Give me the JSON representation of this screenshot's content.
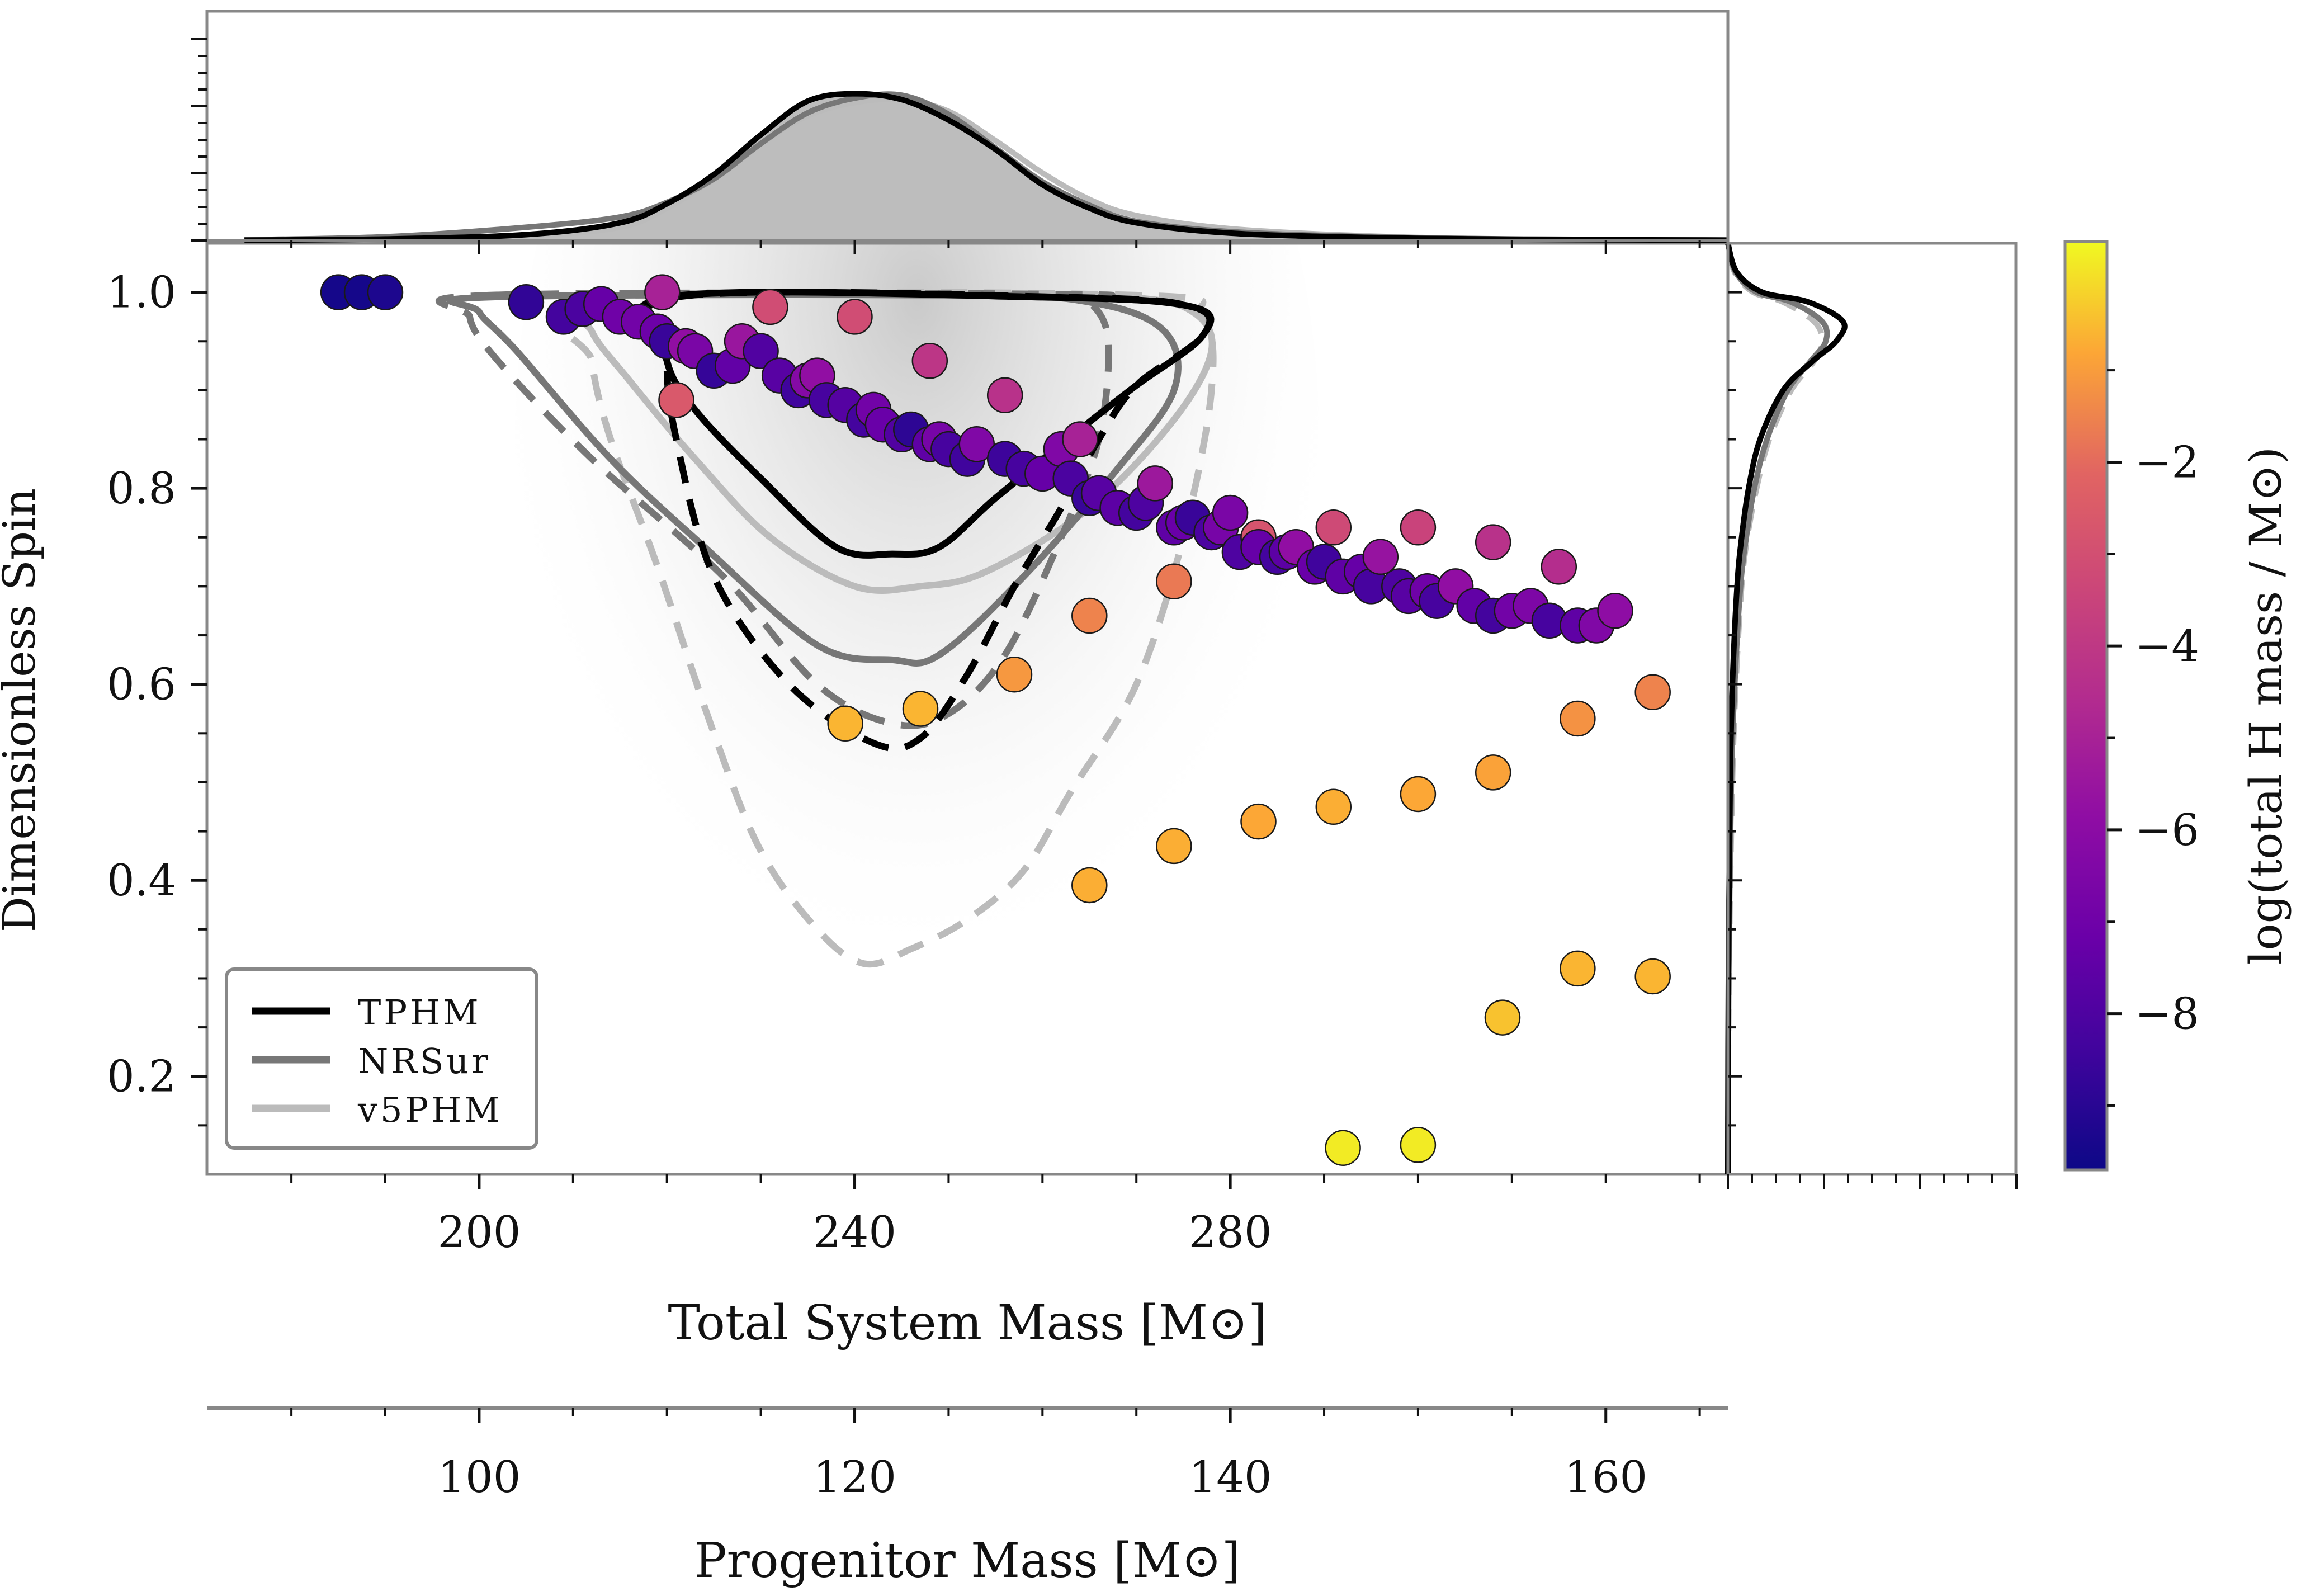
{
  "chart_data": {
    "type": "scatter",
    "xlabel": "Total System Mass [M⊙]",
    "ylabel": "Dimensionless Spin",
    "secondary_xlabel": "Progenitor Mass [M⊙]",
    "colorbar_label": "log(total H mass / M⊙)",
    "xlim": [
      171,
      333
    ],
    "ylim": [
      0.1,
      1.05
    ],
    "secondary_xlim": [
      85.5,
      166.5
    ],
    "colorbar_range": [
      -9.7,
      0.4
    ],
    "x_ticks": [
      200,
      240,
      280
    ],
    "y_ticks": [
      0.2,
      0.4,
      0.6,
      0.8,
      1.0
    ],
    "secondary_x_ticks": [
      100,
      120,
      140,
      160
    ],
    "colorbar_ticks": [
      -2,
      -4,
      -6,
      -8
    ],
    "x_tick_labels": [
      "200",
      "240",
      "280"
    ],
    "y_tick_labels": [
      "0.2",
      "0.4",
      "0.6",
      "0.8",
      "1.0"
    ],
    "secondary_x_tick_labels": [
      "100",
      "120",
      "140",
      "160"
    ],
    "colorbar_tick_labels": [
      "−2",
      "−4",
      "−6",
      "−8"
    ],
    "legend": {
      "placement": "lower-left",
      "entries": [
        {
          "label": "TPHM",
          "color": "#000000"
        },
        {
          "label": "NRSur",
          "color": "#777777"
        },
        {
          "label": "v5PHM",
          "color": "#bbbbbb"
        }
      ]
    },
    "series": [
      {
        "name": "TPHM",
        "color": "#000000",
        "inner": [
          [
            220,
            0.995
          ],
          [
            260,
            0.995
          ],
          [
            276,
            0.985
          ],
          [
            277,
            0.955
          ],
          [
            270,
            0.905
          ],
          [
            264,
            0.86
          ],
          [
            255,
            0.79
          ],
          [
            249,
            0.74
          ],
          [
            244,
            0.733
          ],
          [
            238,
            0.74
          ],
          [
            230,
            0.81
          ],
          [
            223,
            0.88
          ],
          [
            220,
            0.93
          ]
        ],
        "outer": [
          [
            221,
            0.995
          ],
          [
            262,
            0.995
          ],
          [
            276,
            0.985
          ],
          [
            277,
            0.955
          ],
          [
            270,
            0.905
          ],
          [
            266,
            0.85
          ],
          [
            262,
            0.78
          ],
          [
            257,
            0.7
          ],
          [
            252,
            0.61
          ],
          [
            247,
            0.545
          ],
          [
            242,
            0.54
          ],
          [
            233,
            0.6
          ],
          [
            225,
            0.71
          ],
          [
            221,
            0.85
          ],
          [
            220,
            0.93
          ]
        ]
      },
      {
        "name": "NRSur",
        "color": "#777777",
        "inner": [
          [
            201,
            0.995
          ],
          [
            250,
            0.997
          ],
          [
            265,
            0.99
          ],
          [
            273,
            0.96
          ],
          [
            274,
            0.9
          ],
          [
            268,
            0.82
          ],
          [
            258,
            0.71
          ],
          [
            249,
            0.63
          ],
          [
            244,
            0.625
          ],
          [
            236,
            0.64
          ],
          [
            224,
            0.74
          ],
          [
            214,
            0.83
          ],
          [
            204,
            0.94
          ],
          [
            200,
            0.98
          ]
        ],
        "outer": [
          [
            201,
            0.997
          ],
          [
            262,
            0.998
          ],
          [
            265,
            0.99
          ],
          [
            267,
            0.95
          ],
          [
            266,
            0.85
          ],
          [
            262,
            0.75
          ],
          [
            256,
            0.63
          ],
          [
            250,
            0.57
          ],
          [
            244,
            0.56
          ],
          [
            236,
            0.6
          ],
          [
            226,
            0.71
          ],
          [
            212,
            0.83
          ],
          [
            202,
            0.93
          ],
          [
            199,
            0.975
          ]
        ]
      },
      {
        "name": "v5PHM",
        "color": "#bbbbbb",
        "inner": [
          [
            212,
            0.995
          ],
          [
            250,
            0.998
          ],
          [
            269,
            0.995
          ],
          [
            276,
            0.98
          ],
          [
            278,
            0.94
          ],
          [
            274,
            0.87
          ],
          [
            265,
            0.78
          ],
          [
            254,
            0.715
          ],
          [
            247,
            0.7
          ],
          [
            240,
            0.7
          ],
          [
            231,
            0.75
          ],
          [
            223,
            0.83
          ],
          [
            216,
            0.91
          ],
          [
            212,
            0.96
          ]
        ],
        "outer": [
          [
            212,
            0.993
          ],
          [
            270,
            0.997
          ],
          [
            277,
            0.975
          ],
          [
            278,
            0.9
          ],
          [
            275,
            0.75
          ],
          [
            270,
            0.6
          ],
          [
            263,
            0.49
          ],
          [
            258,
            0.41
          ],
          [
            252,
            0.36
          ],
          [
            246,
            0.33
          ],
          [
            241,
            0.315
          ],
          [
            236,
            0.35
          ],
          [
            230,
            0.43
          ],
          [
            225,
            0.55
          ],
          [
            219,
            0.72
          ],
          [
            214,
            0.85
          ],
          [
            212,
            0.93
          ]
        ]
      }
    ],
    "marginal_x": {
      "samples": [
        175,
        190,
        205,
        215,
        220,
        225,
        230,
        235,
        240,
        245,
        250,
        255,
        260,
        265,
        270,
        280,
        295,
        310,
        333
      ],
      "TPHM": [
        0.002,
        0.01,
        0.04,
        0.12,
        0.25,
        0.45,
        0.72,
        0.95,
        1.0,
        0.96,
        0.82,
        0.62,
        0.38,
        0.22,
        0.12,
        0.05,
        0.02,
        0.008,
        0.002
      ],
      "NRSur": [
        0.005,
        0.025,
        0.09,
        0.16,
        0.26,
        0.42,
        0.66,
        0.87,
        0.97,
        0.99,
        0.86,
        0.63,
        0.4,
        0.24,
        0.13,
        0.06,
        0.025,
        0.01,
        0.003
      ],
      "v5PHM": [
        0.002,
        0.008,
        0.03,
        0.09,
        0.22,
        0.42,
        0.66,
        0.85,
        0.94,
        0.96,
        0.88,
        0.68,
        0.46,
        0.28,
        0.17,
        0.08,
        0.03,
        0.01,
        0.003
      ]
    },
    "marginal_y": {
      "samples": [
        0.1,
        0.3,
        0.5,
        0.6,
        0.7,
        0.75,
        0.8,
        0.85,
        0.9,
        0.93,
        0.95,
        0.97,
        0.99,
        1.0,
        1.02,
        1.05
      ],
      "TPHM": [
        0.0,
        0.005,
        0.02,
        0.04,
        0.08,
        0.12,
        0.18,
        0.28,
        0.48,
        0.74,
        0.94,
        1.0,
        0.7,
        0.3,
        0.08,
        0.0
      ],
      "NRSur": [
        0.0,
        0.008,
        0.03,
        0.06,
        0.11,
        0.16,
        0.23,
        0.34,
        0.52,
        0.72,
        0.85,
        0.82,
        0.55,
        0.25,
        0.07,
        0.0
      ],
      "v5PHM": [
        0.0,
        0.01,
        0.04,
        0.07,
        0.12,
        0.17,
        0.25,
        0.36,
        0.55,
        0.75,
        0.82,
        0.75,
        0.48,
        0.22,
        0.06,
        0.0
      ]
    },
    "points": [
      [
        185,
        1.0,
        -9.5
      ],
      [
        187.5,
        1.0,
        -9.5
      ],
      [
        190,
        1.0,
        -9.3
      ],
      [
        205,
        0.99,
        -8.8
      ],
      [
        209,
        0.975,
        -8.3
      ],
      [
        211,
        0.983,
        -8.1
      ],
      [
        213,
        0.988,
        -7.3
      ],
      [
        215,
        0.975,
        -7.0
      ],
      [
        217,
        0.97,
        -6.9
      ],
      [
        219,
        0.96,
        -7.1
      ],
      [
        219.5,
        1.0,
        -5.0
      ],
      [
        220,
        0.95,
        -8.6
      ],
      [
        221,
        0.89,
        -2.6
      ],
      [
        222,
        0.945,
        -5.8
      ],
      [
        223,
        0.94,
        -6.6
      ],
      [
        225,
        0.92,
        -8.7
      ],
      [
        227,
        0.925,
        -7.4
      ],
      [
        228,
        0.95,
        -5.5
      ],
      [
        230,
        0.94,
        -7.9
      ],
      [
        231,
        0.985,
        -3.1
      ],
      [
        232,
        0.915,
        -7.7
      ],
      [
        234,
        0.9,
        -8.4
      ],
      [
        235,
        0.91,
        -6.2
      ],
      [
        236,
        0.915,
        -5.8
      ],
      [
        237,
        0.89,
        -8.2
      ],
      [
        239,
        0.885,
        -7.8
      ],
      [
        240,
        0.975,
        -3.1
      ],
      [
        241,
        0.87,
        -8.3
      ],
      [
        242,
        0.88,
        -6.9
      ],
      [
        243,
        0.865,
        -7.2
      ],
      [
        245,
        0.855,
        -7.9
      ],
      [
        246,
        0.86,
        -8.9
      ],
      [
        248,
        0.845,
        -7.5
      ],
      [
        248,
        0.93,
        -4.1
      ],
      [
        249,
        0.85,
        -6.7
      ],
      [
        250,
        0.84,
        -8.2
      ],
      [
        252,
        0.83,
        -8.4
      ],
      [
        253,
        0.845,
        -6.4
      ],
      [
        256,
        0.895,
        -4.3
      ],
      [
        256,
        0.83,
        -8.5
      ],
      [
        258,
        0.82,
        -8.2
      ],
      [
        260,
        0.815,
        -7.3
      ],
      [
        262,
        0.84,
        -6.4
      ],
      [
        263,
        0.81,
        -8.1
      ],
      [
        264,
        0.85,
        -5.0
      ],
      [
        265,
        0.79,
        -8.6
      ],
      [
        266,
        0.795,
        -7.7
      ],
      [
        268,
        0.78,
        -7.6
      ],
      [
        270,
        0.775,
        -8.3
      ],
      [
        271,
        0.785,
        -8.0
      ],
      [
        272,
        0.805,
        -5.4
      ],
      [
        274,
        0.76,
        -7.5
      ],
      [
        275,
        0.765,
        -7.2
      ],
      [
        276,
        0.77,
        -8.6
      ],
      [
        278,
        0.755,
        -8.1
      ],
      [
        279,
        0.76,
        -6.7
      ],
      [
        280,
        0.775,
        -6.6
      ],
      [
        281,
        0.735,
        -8.0
      ],
      [
        283,
        0.75,
        -2.8
      ],
      [
        283,
        0.74,
        -7.3
      ],
      [
        285,
        0.73,
        -8.3
      ],
      [
        286,
        0.735,
        -7.6
      ],
      [
        287,
        0.74,
        -5.8
      ],
      [
        289,
        0.72,
        -7.2
      ],
      [
        290,
        0.725,
        -8.4
      ],
      [
        291,
        0.76,
        -3.2
      ],
      [
        292,
        0.71,
        -7.5
      ],
      [
        294,
        0.715,
        -7.3
      ],
      [
        295,
        0.7,
        -8.2
      ],
      [
        296,
        0.73,
        -5.6
      ],
      [
        298,
        0.7,
        -8.0
      ],
      [
        299,
        0.69,
        -7.7
      ],
      [
        300,
        0.76,
        -3.5
      ],
      [
        301,
        0.695,
        -7.0
      ],
      [
        302,
        0.685,
        -8.2
      ],
      [
        304,
        0.7,
        -5.8
      ],
      [
        306,
        0.68,
        -7.4
      ],
      [
        308,
        0.745,
        -4.3
      ],
      [
        308,
        0.67,
        -8.3
      ],
      [
        310,
        0.675,
        -6.9
      ],
      [
        312,
        0.68,
        -6.5
      ],
      [
        314,
        0.665,
        -8.2
      ],
      [
        315,
        0.72,
        -4.5
      ],
      [
        317,
        0.66,
        -7.5
      ],
      [
        319,
        0.66,
        -6.4
      ],
      [
        321,
        0.675,
        -5.9
      ],
      [
        239,
        0.56,
        -0.6
      ],
      [
        247,
        0.575,
        -0.6
      ],
      [
        257,
        0.61,
        -1.1
      ],
      [
        265,
        0.67,
        -1.5
      ],
      [
        274,
        0.705,
        -1.7
      ],
      [
        265,
        0.395,
        -0.7
      ],
      [
        274,
        0.435,
        -0.7
      ],
      [
        283,
        0.46,
        -0.8
      ],
      [
        291,
        0.475,
        -0.7
      ],
      [
        300,
        0.488,
        -0.8
      ],
      [
        308,
        0.51,
        -0.9
      ],
      [
        317,
        0.565,
        -1.2
      ],
      [
        325,
        0.592,
        -1.5
      ],
      [
        309,
        0.26,
        -0.4
      ],
      [
        317,
        0.31,
        -0.6
      ],
      [
        325,
        0.302,
        -0.6
      ],
      [
        292,
        0.127,
        0.2
      ],
      [
        300,
        0.13,
        0.2
      ]
    ]
  }
}
